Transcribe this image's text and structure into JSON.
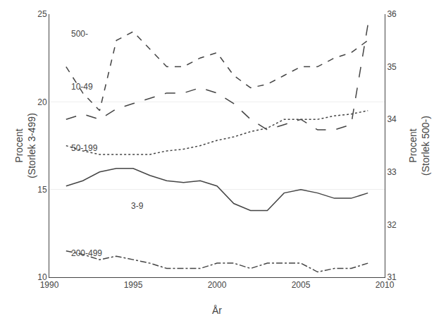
{
  "chart_data": {
    "type": "line",
    "xlabel": "År",
    "ylabel": "Procent\n(Storlek 3-499)",
    "y2label": "Procent\n(Storlek 500-)",
    "x": [
      1991,
      1992,
      1993,
      1994,
      1995,
      1996,
      1997,
      1998,
      1999,
      2000,
      2001,
      2002,
      2003,
      2004,
      2005,
      2006,
      2007,
      2008,
      2009
    ],
    "series": [
      {
        "color": "#444444",
        "line_style": "solid",
        "values": [
          15.2,
          15.5,
          16.0,
          16.2,
          16.2,
          15.8,
          15.5,
          15.4,
          15.5,
          15.2,
          14.2,
          13.8,
          13.8,
          14.8,
          15.0,
          14.8,
          14.5,
          14.5,
          14.8
        ]
      },
      {
        "color": "#444444",
        "line_style": "dashed",
        "values": [
          22.0,
          20.5,
          19.5,
          23.5,
          24.0,
          23.0,
          22.0,
          22.0,
          22.5,
          22.8,
          21.5,
          20.8,
          21.0,
          21.5,
          22.0,
          22.0,
          22.5,
          22.8,
          23.5
        ]
      },
      {
        "color": "#444444",
        "line_style": "dotted",
        "values": [
          17.5,
          17.2,
          17.0,
          17.0,
          17.0,
          17.0,
          17.2,
          17.3,
          17.5,
          17.8,
          18.0,
          18.3,
          18.5,
          19.0,
          19.0,
          19.0,
          19.2,
          19.3,
          19.5
        ]
      },
      {
        "color": "#444444",
        "line_style": "dashdot",
        "values": [
          11.5,
          11.3,
          11.0,
          11.2,
          11.0,
          10.8,
          10.5,
          10.5,
          10.5,
          10.8,
          10.8,
          10.5,
          10.8,
          10.8,
          10.8,
          10.3,
          10.5,
          10.5,
          10.8
        ]
      },
      {
        "color": "#444444",
        "line_style": "longdash",
        "axis": "y2",
        "values": [
          34.0,
          34.1,
          34.0,
          34.2,
          34.3,
          34.4,
          34.5,
          34.5,
          34.6,
          34.5,
          34.3,
          34.0,
          33.8,
          33.9,
          34.0,
          33.8,
          33.8,
          33.9,
          35.8
        ]
      }
    ],
    "annotations": [
      {
        "text": "500-",
        "x": 1991.2,
        "y": 23.5,
        "color": "#444444"
      },
      {
        "text": "10-49",
        "x": 1991.2,
        "y": 20.5,
        "color": "#444444"
      },
      {
        "text": "50-199",
        "x": 1991.2,
        "y": 17.0,
        "color": "#444444"
      },
      {
        "text": "3-9",
        "x": 1994.8,
        "y": 13.7,
        "color": "#444444"
      },
      {
        "text": "200-499",
        "x": 1991.2,
        "y": 11.0,
        "color": "#444444"
      }
    ],
    "xlim": [
      1990,
      2010
    ],
    "xticks": [
      1990,
      1995,
      2000,
      2005,
      2010
    ],
    "ylim": [
      10,
      25
    ],
    "yticks": [
      10,
      15,
      20,
      25
    ],
    "y2lim": [
      31,
      36
    ],
    "y2ticks": [
      31,
      32,
      33,
      34,
      35,
      36
    ],
    "grid": "y"
  }
}
